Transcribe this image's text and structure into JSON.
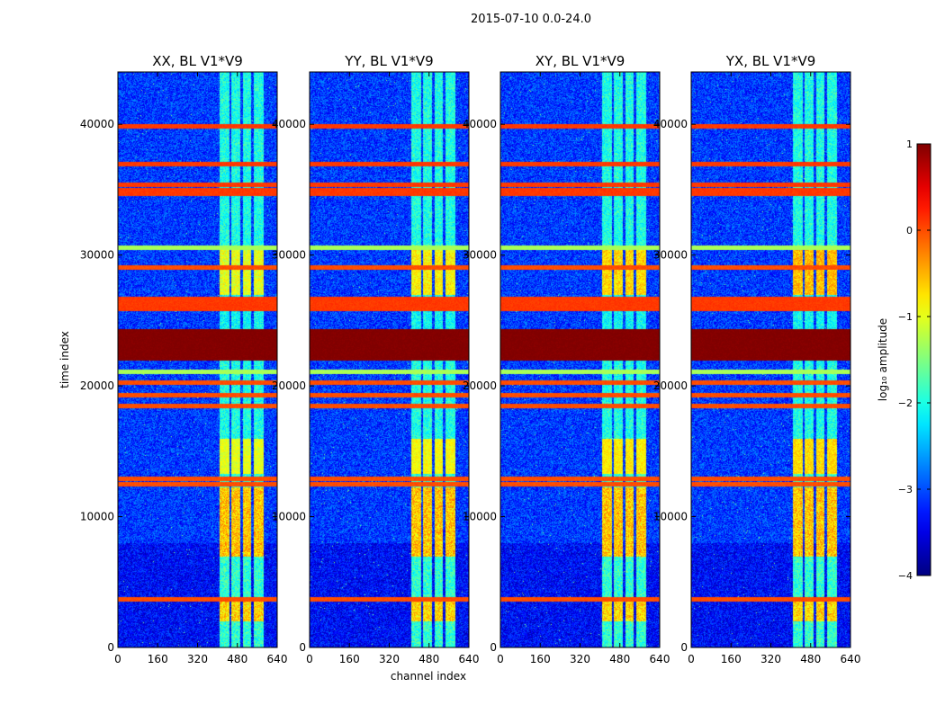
{
  "figure": {
    "suptitle": "2015-07-10 0.0-24.0"
  },
  "chart_data": {
    "type": "heatmap",
    "xlabel": "channel index",
    "ylabel": "time index",
    "xlim": [
      0,
      640
    ],
    "ylim": [
      0,
      44000
    ],
    "xticks": [
      "0",
      "160",
      "320",
      "480",
      "640"
    ],
    "yticks": [
      "0",
      "10000",
      "20000",
      "30000",
      "40000"
    ],
    "panels": [
      {
        "title": "XX, BL V1*V9"
      },
      {
        "title": "YY, BL V1*V9"
      },
      {
        "title": "XY, BL V1*V9"
      },
      {
        "title": "YX, BL V1*V9"
      }
    ],
    "colorbar": {
      "label": "log₁₀ amplitude",
      "range": [
        -4,
        1
      ],
      "ticks": [
        "1",
        "0",
        "−1",
        "−2",
        "−3",
        "−4"
      ],
      "colormap": "jet"
    },
    "flagged_time_ranges": [
      {
        "from": 22000,
        "to": 24400,
        "log_amp": 1.0
      }
    ],
    "rfi_time_rows": [
      {
        "t": 39900,
        "log_amp": 0.1
      },
      {
        "t": 37000,
        "log_amp": 0.1
      },
      {
        "t": 35400,
        "log_amp": 0.1
      },
      {
        "t": 35000,
        "log_amp": 0.1
      },
      {
        "t": 34700,
        "log_amp": 0.1
      },
      {
        "t": 30600,
        "log_amp": -1.3
      },
      {
        "t": 29100,
        "log_amp": 0.0
      },
      {
        "t": 26700,
        "log_amp": 0.1
      },
      {
        "t": 26300,
        "log_amp": 0.1
      },
      {
        "t": 25900,
        "log_amp": 0.1
      },
      {
        "t": 21100,
        "log_amp": -1.3
      },
      {
        "t": 20300,
        "log_amp": 0.0
      },
      {
        "t": 19300,
        "log_amp": 0.0
      },
      {
        "t": 18500,
        "log_amp": 0.0
      },
      {
        "t": 12900,
        "log_amp": 0.0
      },
      {
        "t": 12500,
        "log_amp": 0.0
      },
      {
        "t": 3700,
        "log_amp": 0.0
      }
    ],
    "rfi_channel_bands": [
      {
        "from": 405,
        "to": 445
      },
      {
        "from": 455,
        "to": 490
      },
      {
        "from": 500,
        "to": 535
      },
      {
        "from": 545,
        "to": 585
      }
    ]
  }
}
